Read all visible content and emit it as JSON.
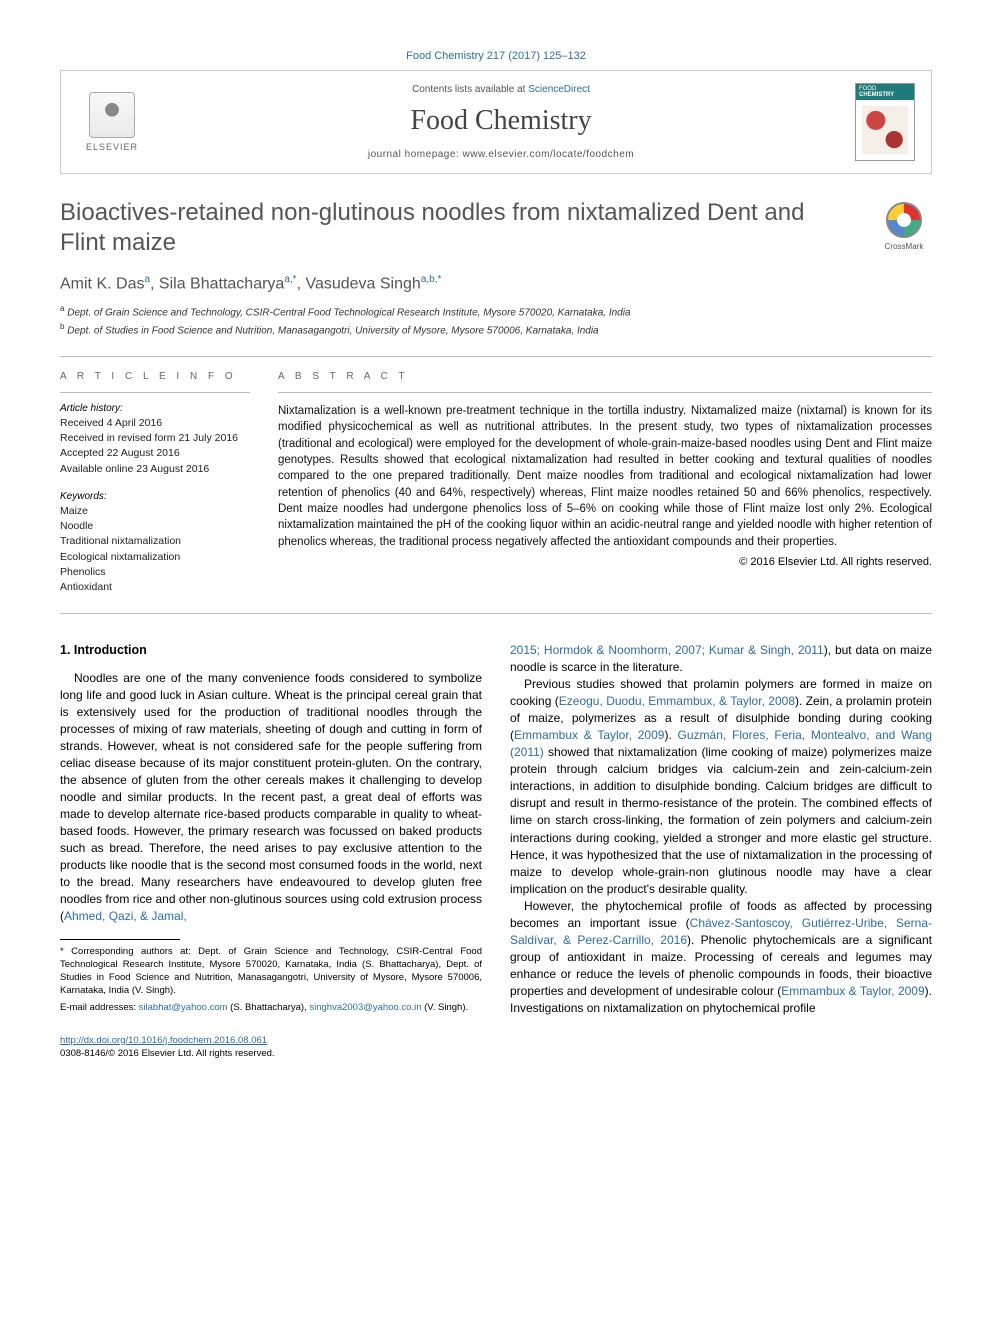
{
  "citation_line": "Food Chemistry 217 (2017) 125–132",
  "header": {
    "contents_prefix": "Contents lists available at ",
    "contents_link": "ScienceDirect",
    "journal": "Food Chemistry",
    "homepage_prefix": "journal homepage: ",
    "homepage_url": "www.elsevier.com/locate/foodchem",
    "elsevier": "ELSEVIER",
    "cover_top": "FOOD",
    "cover_bottom": "CHEMISTRY"
  },
  "crossmark": "CrossMark",
  "title": "Bioactives-retained non-glutinous noodles from nixtamalized Dent and Flint maize",
  "authors_html": "Amit K. Das|a|, Sila Bhattacharya|a,*|, Vasudeva Singh|a,b,*|",
  "authors": [
    {
      "name": "Amit K. Das",
      "sup": "a"
    },
    {
      "name": "Sila Bhattacharya",
      "sup": "a,*"
    },
    {
      "name": "Vasudeva Singh",
      "sup": "a,b,*"
    }
  ],
  "affiliations": [
    {
      "sup": "a",
      "text": "Dept. of Grain Science and Technology, CSIR-Central Food Technological Research Institute, Mysore 570020, Karnataka, India"
    },
    {
      "sup": "b",
      "text": "Dept. of Studies in Food Science and Nutrition, Manasagangotri, University of Mysore, Mysore 570006, Karnataka, India"
    }
  ],
  "article_info_label": "A R T I C L E   I N F O",
  "abstract_label": "A B S T R A C T",
  "history_label": "Article history:",
  "history": [
    "Received 4 April 2016",
    "Received in revised form 21 July 2016",
    "Accepted 22 August 2016",
    "Available online 23 August 2016"
  ],
  "keywords_label": "Keywords:",
  "keywords": [
    "Maize",
    "Noodle",
    "Traditional nixtamalization",
    "Ecological nixtamalization",
    "Phenolics",
    "Antioxidant"
  ],
  "abstract": "Nixtamalization is a well-known pre-treatment technique in the tortilla industry. Nixtamalized maize (nixtamal) is known for its modified physicochemical as well as nutritional attributes. In the present study, two types of nixtamalization processes (traditional and ecological) were employed for the development of whole-grain-maize-based noodles using Dent and Flint maize genotypes. Results showed that ecological nixtamalization had resulted in better cooking and textural qualities of noodles compared to the one prepared traditionally. Dent maize noodles from traditional and ecological nixtamalization had lower retention of phenolics (40 and 64%, respectively) whereas, Flint maize noodles retained 50 and 66% phenolics, respectively. Dent maize noodles had undergone phenolics loss of 5–6% on cooking while those of Flint maize lost only 2%. Ecological nixtamalization maintained the pH of the cooking liquor within an acidic-neutral range and yielded noodle with higher retention of phenolics whereas, the traditional process negatively affected the antioxidant compounds and their properties.",
  "copyright": "© 2016 Elsevier Ltd. All rights reserved.",
  "section1": "1. Introduction",
  "paragraphs": {
    "p1a": "Noodles are one of the many convenience foods considered to symbolize long life and good luck in Asian culture. Wheat is the principal cereal grain that is extensively used for the production of traditional noodles through the processes of mixing of raw materials, sheeting of dough and cutting in form of strands. However, wheat is not considered safe for the people suffering from celiac disease because of its major constituent protein-gluten. On the contrary, the absence of gluten from the other cereals makes it challenging to develop noodle and similar products. In the recent past, a great deal of efforts was made to develop alternate rice-based products comparable in quality to wheat-based foods. However, the primary research was focussed on baked products such as bread. Therefore, the need arises to pay exclusive attention to the products like noodle that is the second most consumed foods in the world, next to the bread. Many researchers have endeavoured to develop gluten free noodles from rice and other non-glutinous sources using cold extrusion process (",
    "p1_cite1": "Ahmed, Qazi, & Jamal,",
    "p1_cite2": "2015; Hormdok & Noomhorm, 2007; Kumar & Singh, 2011",
    "p1b": "), but data on maize noodle is scarce in the literature.",
    "p2a": "Previous studies showed that prolamin polymers are formed in maize on cooking (",
    "p2_cite1": "Ezeogu, Duodu, Emmambux, & Taylor, 2008",
    "p2b": "). Zein, a prolamin protein of maize, polymerizes as a result of disulphide bonding during cooking (",
    "p2_cite2": "Emmambux & Taylor, 2009",
    "p2c": "). ",
    "p2_cite3": "Guzmán, Flores, Feria, Montealvo, and Wang (2011)",
    "p2d": " showed that nixtamalization (lime cooking of maize) polymerizes maize protein through calcium bridges via calcium-zein and zein-calcium-zein interactions, in addition to disulphide bonding. Calcium bridges are difficult to disrupt and result in thermo-resistance of the protein. The combined effects of lime on starch cross-linking, the formation of zein polymers and calcium-zein interactions during cooking, yielded a stronger and more elastic gel structure. Hence, it was hypothesized that the use of nixtamalization in the processing of maize to develop whole-grain-non glutinous noodle may have a clear implication on the product's desirable quality.",
    "p3a": "However, the phytochemical profile of foods as affected by processing becomes an important issue (",
    "p3_cite1": "Chávez-Santoscoy, Gutiérrez-Uribe, Serna-Saldívar, & Perez-Carrillo, 2016",
    "p3b": "). Phenolic phytochemicals are a significant group of antioxidant in maize. Processing of cereals and legumes may enhance or reduce the levels of phenolic compounds in foods, their bioactive properties and development of undesirable colour (",
    "p3_cite2": "Emmambux & Taylor, 2009",
    "p3c": "). Investigations on nixtamalization on phytochemical profile"
  },
  "footnotes": {
    "corr": "* Corresponding authors at: Dept. of Grain Science and Technology, CSIR-Central Food Technological Research Institute, Mysore 570020, Karnataka, India (S. Bhattacharya), Dept. of Studies in Food Science and Nutrition, Manasagangotri, University of Mysore, Mysore 570006, Karnataka, India (V. Singh).",
    "email_label": "E-mail addresses: ",
    "email1": "silabhat@yahoo.com",
    "email1_tail": " (S. Bhattacharya), ",
    "email2": "singhva2003@yahoo.co.in",
    "email2_tail": " (V. Singh)."
  },
  "footer": {
    "doi": "http://dx.doi.org/10.1016/j.foodchem.2016.08.061",
    "issn_line": "0308-8146/© 2016 Elsevier Ltd. All rights reserved."
  },
  "colors": {
    "link": "#2e6da4",
    "text": "#111111",
    "muted": "#555555",
    "rule": "#bbbbbb"
  }
}
